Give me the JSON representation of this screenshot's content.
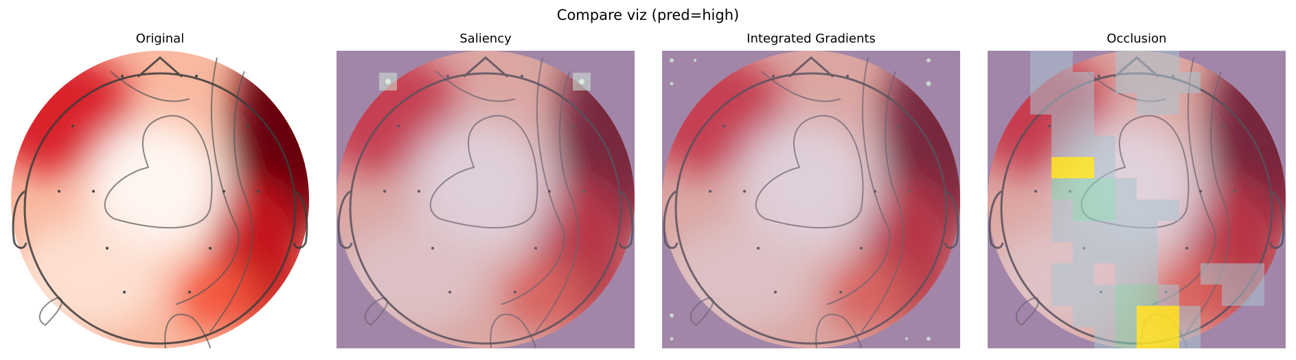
{
  "figure": {
    "title": "Compare viz (pred=high)"
  },
  "panels": [
    {
      "title": "Original",
      "overlay": "none"
    },
    {
      "title": "Saliency",
      "overlay": "saliency"
    },
    {
      "title": "Integrated Gradients",
      "overlay": "integrated-gradients"
    },
    {
      "title": "Occlusion",
      "overlay": "occlusion"
    }
  ],
  "colors": {
    "heat_light": "#fff5f0",
    "heat_mid": "#f4573d",
    "heat_dark": "#67000d",
    "overlay_tint": "#9b7fa8",
    "attribution_high": "#fde725",
    "attribution_mid": "#7fd8b4"
  }
}
